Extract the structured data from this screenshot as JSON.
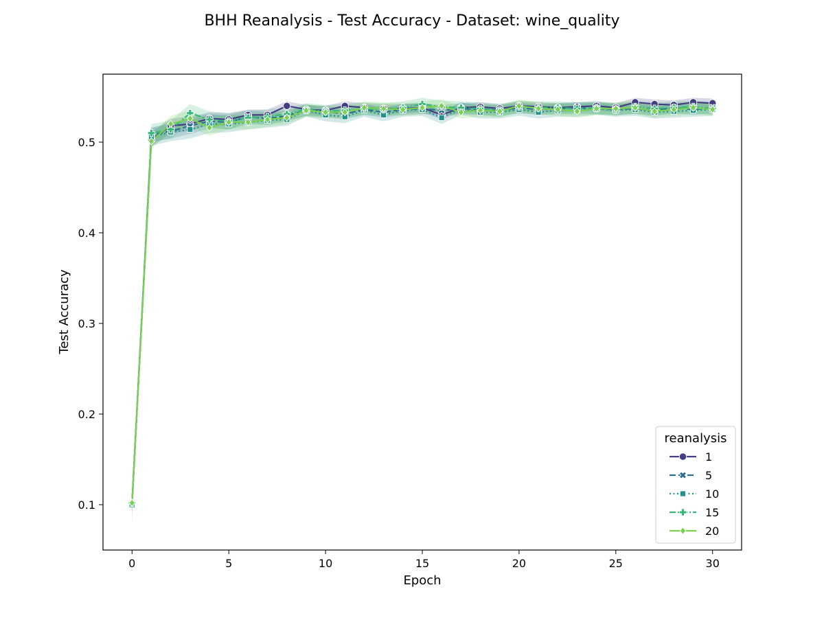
{
  "chart_data": {
    "type": "line",
    "title": "BHH Reanalysis - Test Accuracy - Dataset: wine_quality",
    "xlabel": "Epoch",
    "ylabel": "Test Accuracy",
    "xlim": [
      -1.5,
      31.5
    ],
    "ylim": [
      0.05,
      0.575
    ],
    "xticks": [
      0,
      5,
      10,
      15,
      20,
      25,
      30
    ],
    "yticks": [
      0.1,
      0.2,
      0.3,
      0.4,
      0.5
    ],
    "xtick_labels": [
      "0",
      "5",
      "10",
      "15",
      "20",
      "25",
      "30"
    ],
    "ytick_labels": [
      "0.1",
      "0.2",
      "0.3",
      "0.4",
      "0.5"
    ],
    "grid": false,
    "legend": {
      "title": "reanalysis",
      "placement": "lower-right"
    },
    "x": [
      0,
      1,
      2,
      3,
      4,
      5,
      6,
      7,
      8,
      9,
      10,
      11,
      12,
      13,
      14,
      15,
      16,
      17,
      18,
      19,
      20,
      21,
      22,
      23,
      24,
      25,
      26,
      27,
      28,
      29,
      30
    ],
    "series": [
      {
        "name": "1",
        "color": "#433d84",
        "dash": "solid",
        "marker": "circle",
        "values": [
          0.102,
          0.503,
          0.518,
          0.52,
          0.526,
          0.525,
          0.53,
          0.53,
          0.54,
          0.536,
          0.535,
          0.54,
          0.538,
          0.537,
          0.537,
          0.538,
          0.53,
          0.538,
          0.539,
          0.537,
          0.54,
          0.539,
          0.538,
          0.539,
          0.54,
          0.538,
          0.544,
          0.542,
          0.541,
          0.544,
          0.543
        ],
        "ci": [
          0.008,
          0.008,
          0.008,
          0.008,
          0.007,
          0.007,
          0.006,
          0.006,
          0.005,
          0.005,
          0.005,
          0.005,
          0.005,
          0.005,
          0.005,
          0.005,
          0.005,
          0.005,
          0.005,
          0.005,
          0.005,
          0.005,
          0.005,
          0.005,
          0.005,
          0.005,
          0.005,
          0.005,
          0.005,
          0.005,
          0.005
        ]
      },
      {
        "name": "5",
        "color": "#2c6f8e",
        "dash": "dashed",
        "marker": "x",
        "values": [
          0.101,
          0.508,
          0.512,
          0.518,
          0.523,
          0.522,
          0.528,
          0.526,
          0.529,
          0.535,
          0.534,
          0.531,
          0.536,
          0.533,
          0.536,
          0.537,
          0.535,
          0.537,
          0.536,
          0.535,
          0.538,
          0.536,
          0.537,
          0.538,
          0.537,
          0.536,
          0.537,
          0.535,
          0.538,
          0.536,
          0.538
        ],
        "ci": [
          0.01,
          0.008,
          0.008,
          0.009,
          0.008,
          0.008,
          0.007,
          0.007,
          0.006,
          0.006,
          0.006,
          0.006,
          0.006,
          0.006,
          0.006,
          0.006,
          0.006,
          0.006,
          0.006,
          0.006,
          0.006,
          0.006,
          0.006,
          0.006,
          0.006,
          0.006,
          0.006,
          0.006,
          0.006,
          0.006,
          0.006
        ]
      },
      {
        "name": "10",
        "color": "#21918c",
        "dash": "dotted",
        "marker": "square",
        "values": [
          0.1,
          0.506,
          0.511,
          0.514,
          0.52,
          0.52,
          0.522,
          0.524,
          0.525,
          0.535,
          0.53,
          0.528,
          0.535,
          0.53,
          0.535,
          0.536,
          0.527,
          0.537,
          0.533,
          0.533,
          0.536,
          0.533,
          0.535,
          0.535,
          0.537,
          0.535,
          0.536,
          0.533,
          0.534,
          0.535,
          0.536
        ],
        "ci": [
          0.02,
          0.01,
          0.01,
          0.01,
          0.01,
          0.009,
          0.008,
          0.008,
          0.007,
          0.007,
          0.007,
          0.007,
          0.007,
          0.007,
          0.007,
          0.007,
          0.007,
          0.007,
          0.007,
          0.007,
          0.007,
          0.007,
          0.007,
          0.007,
          0.007,
          0.007,
          0.007,
          0.007,
          0.007,
          0.007,
          0.007
        ]
      },
      {
        "name": "15",
        "color": "#35b779",
        "dash": "dashdot",
        "marker": "plus",
        "values": [
          0.102,
          0.51,
          0.514,
          0.532,
          0.525,
          0.523,
          0.527,
          0.528,
          0.531,
          0.536,
          0.534,
          0.535,
          0.537,
          0.536,
          0.538,
          0.542,
          0.539,
          0.538,
          0.537,
          0.535,
          0.539,
          0.538,
          0.538,
          0.537,
          0.538,
          0.536,
          0.539,
          0.537,
          0.538,
          0.539,
          0.537
        ],
        "ci": [
          0.012,
          0.01,
          0.01,
          0.01,
          0.009,
          0.009,
          0.008,
          0.008,
          0.007,
          0.007,
          0.007,
          0.007,
          0.007,
          0.007,
          0.007,
          0.007,
          0.007,
          0.007,
          0.007,
          0.007,
          0.007,
          0.007,
          0.007,
          0.007,
          0.007,
          0.007,
          0.007,
          0.007,
          0.007,
          0.007,
          0.007
        ]
      },
      {
        "name": "20",
        "color": "#7ad151",
        "dash": "solid",
        "marker": "diamond",
        "values": [
          0.102,
          0.501,
          0.52,
          0.526,
          0.516,
          0.522,
          0.522,
          0.525,
          0.527,
          0.535,
          0.533,
          0.533,
          0.538,
          0.537,
          0.536,
          0.538,
          0.54,
          0.533,
          0.535,
          0.534,
          0.54,
          0.537,
          0.536,
          0.534,
          0.537,
          0.537,
          0.538,
          0.534,
          0.536,
          0.538,
          0.536
        ],
        "ci": [
          0.01,
          0.008,
          0.009,
          0.009,
          0.009,
          0.008,
          0.008,
          0.008,
          0.007,
          0.007,
          0.007,
          0.007,
          0.007,
          0.007,
          0.007,
          0.007,
          0.007,
          0.007,
          0.007,
          0.007,
          0.007,
          0.007,
          0.007,
          0.007,
          0.007,
          0.007,
          0.007,
          0.007,
          0.007,
          0.007,
          0.007
        ]
      }
    ]
  }
}
